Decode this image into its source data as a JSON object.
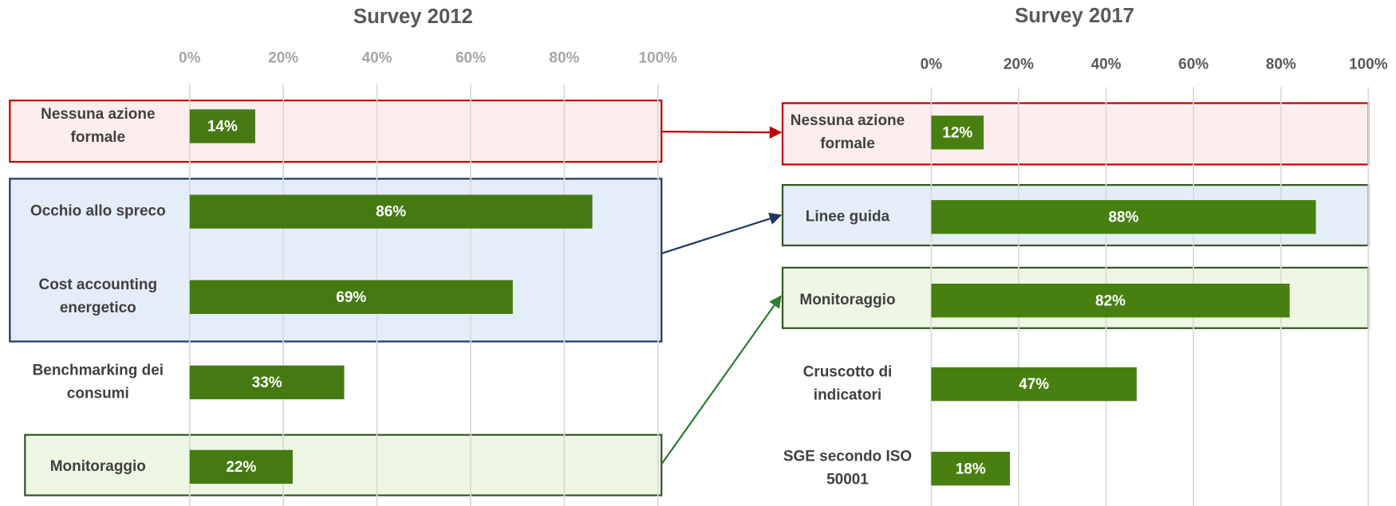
{
  "chart_data": [
    {
      "type": "barh",
      "title": "Survey 2012",
      "categories": [
        "Nessuna azione formale",
        "Occhio allo spreco",
        "Cost accounting energetico",
        "Benchmarking dei consumi",
        "Monitoraggio"
      ],
      "values": [
        14,
        86,
        69,
        33,
        22
      ],
      "value_labels": [
        "14%",
        "86%",
        "69%",
        "33%",
        "22%"
      ],
      "color": "#457a12",
      "xlim": [
        0,
        100
      ],
      "xticks": [
        {
          "value": 0,
          "label": "0%"
        },
        {
          "value": 20,
          "label": "20%"
        },
        {
          "value": 40,
          "label": "40%"
        },
        {
          "value": 60,
          "label": "60%"
        },
        {
          "value": 80,
          "label": "80%"
        },
        {
          "value": 100,
          "label": "100%"
        }
      ],
      "grid": true
    },
    {
      "type": "barh",
      "title": "Survey 2017",
      "categories": [
        "Nessuna azione formale",
        "Linee guida",
        "Monitoraggio",
        "Cruscotto di indicatori",
        "SGE secondo ISO 50001"
      ],
      "values": [
        12,
        88,
        82,
        47,
        18
      ],
      "value_labels": [
        "12%",
        "88%",
        "82%",
        "47%",
        "18%"
      ],
      "color": "#478010",
      "xlim": [
        0,
        100
      ],
      "xticks": [
        {
          "value": 0,
          "label": "0%"
        },
        {
          "value": 20,
          "label": "20%"
        },
        {
          "value": 40,
          "label": "40%"
        },
        {
          "value": 60,
          "label": "60%"
        },
        {
          "value": 80,
          "label": "80%"
        },
        {
          "value": 100,
          "label": "100%"
        }
      ],
      "grid": true
    }
  ]
}
